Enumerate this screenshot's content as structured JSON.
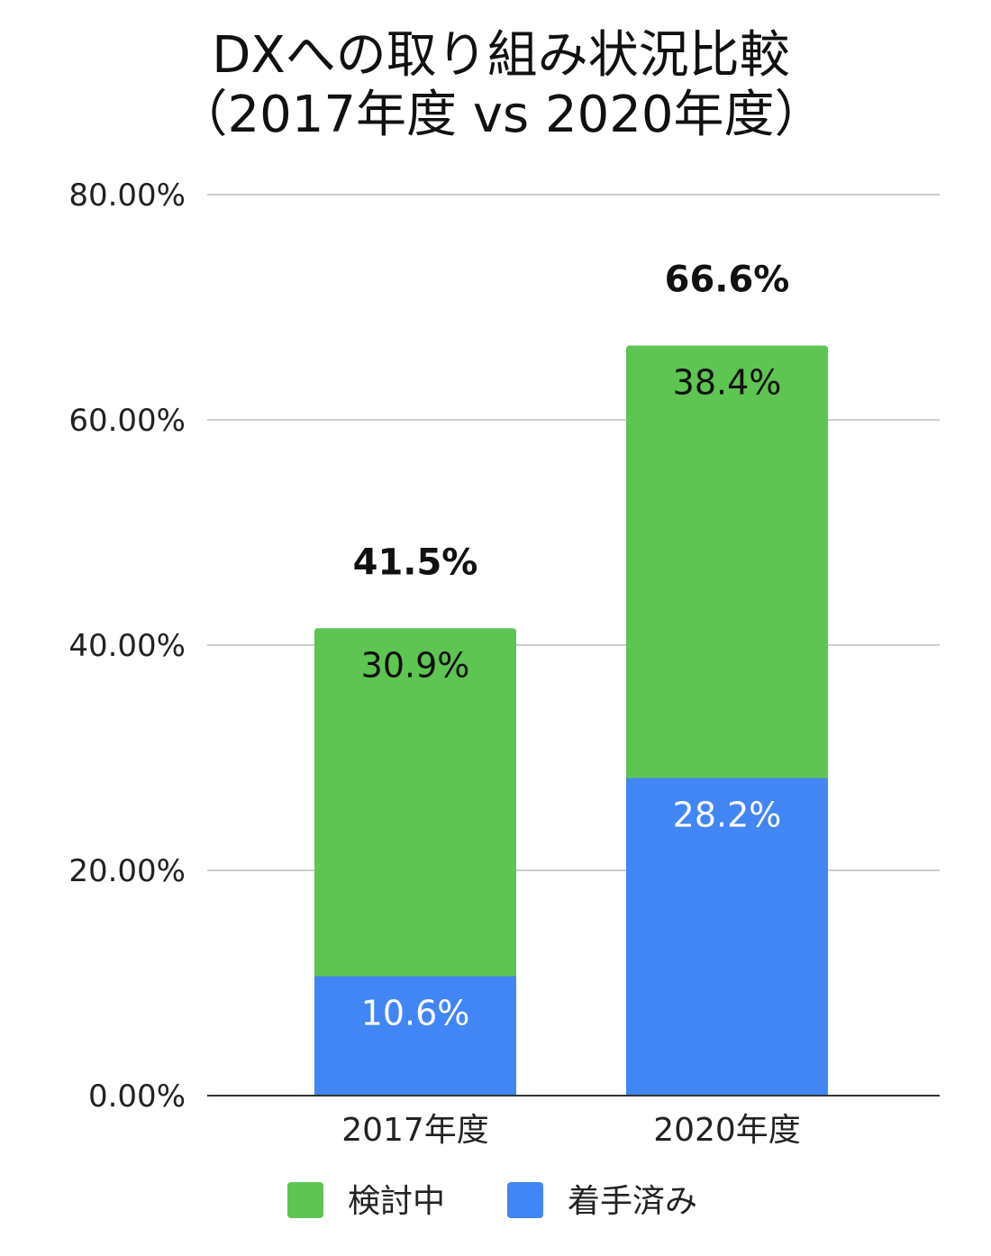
{
  "chart_data": {
    "type": "bar",
    "stacked": true,
    "title": "DXへの取り組み状況比較",
    "subtitle": "（2017年度 vs 2020年度）",
    "categories": [
      "2017年度",
      "2020年度"
    ],
    "series": [
      {
        "name": "着手済み",
        "color": "#4285F4",
        "label_color": "#ffffff",
        "values": [
          10.6,
          28.2
        ],
        "labels": [
          "10.6%",
          "28.2%"
        ]
      },
      {
        "name": "検討中",
        "color": "#5EC452",
        "label_color": "#111111",
        "values": [
          30.9,
          38.4
        ],
        "labels": [
          "30.9%",
          "38.4%"
        ]
      }
    ],
    "totals": [
      41.5,
      66.6
    ],
    "total_labels": [
      "41.5%",
      "66.6%"
    ],
    "ylim": [
      0,
      80
    ],
    "yticks": [
      0,
      20,
      40,
      60,
      80
    ],
    "ytick_labels": [
      "0.00%",
      "20.00%",
      "40.00%",
      "60.00%",
      "80.00%"
    ],
    "xlabel": "",
    "ylabel": "",
    "grid": true,
    "legend": {
      "placement": "bottom",
      "items": [
        {
          "name": "検討中",
          "color": "#5EC452"
        },
        {
          "name": "着手済み",
          "color": "#4285F4"
        }
      ]
    }
  }
}
